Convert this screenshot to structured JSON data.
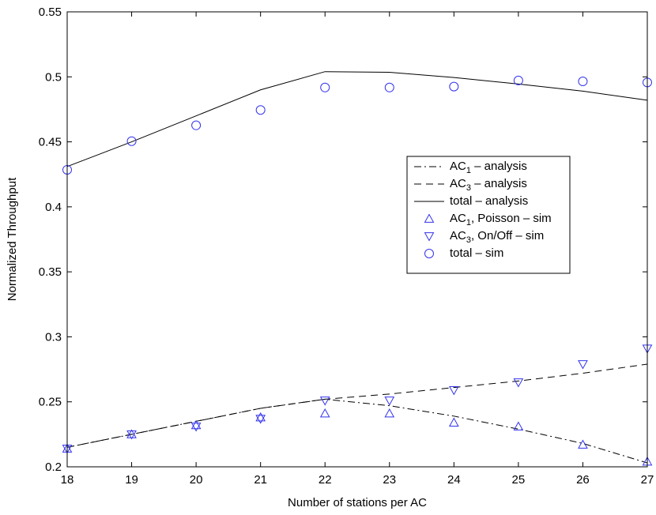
{
  "chart_data": {
    "type": "line",
    "title": "",
    "xlabel": "Number of stations per AC",
    "ylabel": "Normalized Throughput",
    "xlim": [
      18,
      27
    ],
    "ylim": [
      0.2,
      0.55
    ],
    "grid": false,
    "legend_position": "right-middle",
    "x_ticks": [
      "18",
      "19",
      "20",
      "21",
      "22",
      "23",
      "24",
      "25",
      "26",
      "27"
    ],
    "y_ticks": [
      "0.2",
      "0.25",
      "0.3",
      "0.35",
      "0.4",
      "0.45",
      "0.5",
      "0.55"
    ],
    "series": [
      {
        "name": "AC1 – analysis",
        "legend_main": "AC",
        "legend_sub": "1",
        "legend_rest": " – analysis",
        "style": "dashdot",
        "marker": "none",
        "color": "#000000",
        "x": [
          18,
          19,
          20,
          21,
          22,
          23,
          24,
          25,
          26,
          27
        ],
        "y": [
          0.215,
          0.225,
          0.235,
          0.245,
          0.252,
          0.247,
          0.239,
          0.229,
          0.218,
          0.203
        ]
      },
      {
        "name": "AC3 – analysis",
        "legend_main": "AC",
        "legend_sub": "3",
        "legend_rest": " – analysis",
        "style": "dashed",
        "marker": "none",
        "color": "#000000",
        "x": [
          18,
          19,
          20,
          21,
          22,
          23,
          24,
          25,
          26,
          27
        ],
        "y": [
          0.215,
          0.225,
          0.235,
          0.245,
          0.252,
          0.256,
          0.261,
          0.266,
          0.272,
          0.279
        ]
      },
      {
        "name": "total – analysis",
        "legend_main": "total – analysis",
        "legend_sub": "",
        "legend_rest": "",
        "style": "solid",
        "marker": "none",
        "color": "#000000",
        "x": [
          18,
          19,
          20,
          21,
          22,
          23,
          24,
          25,
          26,
          27
        ],
        "y": [
          0.431,
          0.45,
          0.47,
          0.49,
          0.504,
          0.5035,
          0.4995,
          0.4945,
          0.489,
          0.482
        ]
      },
      {
        "name": "AC1, Poisson – sim",
        "legend_main": "AC",
        "legend_sub": "1",
        "legend_rest": ", Poisson – sim",
        "style": "none",
        "marker": "triangle-up",
        "color": "#3333ee",
        "x": [
          18,
          19,
          20,
          21,
          22,
          23,
          24,
          25,
          26,
          27
        ],
        "y": [
          0.214,
          0.225,
          0.232,
          0.238,
          0.241,
          0.241,
          0.234,
          0.231,
          0.217,
          0.204
        ]
      },
      {
        "name": "AC3, On/Off – sim",
        "legend_main": "AC",
        "legend_sub": "3",
        "legend_rest": ", On/Off – sim",
        "style": "none",
        "marker": "triangle-down",
        "color": "#3333ee",
        "x": [
          18,
          19,
          20,
          21,
          22,
          23,
          24,
          25,
          26,
          27
        ],
        "y": [
          0.214,
          0.225,
          0.231,
          0.237,
          0.251,
          0.251,
          0.259,
          0.265,
          0.279,
          0.291
        ]
      },
      {
        "name": "total – sim",
        "legend_main": "total – sim",
        "legend_sub": "",
        "legend_rest": "",
        "style": "none",
        "marker": "circle",
        "color": "#3333ee",
        "x": [
          18,
          19,
          20,
          21,
          22,
          23,
          24,
          25,
          26,
          27
        ],
        "y": [
          0.4285,
          0.4505,
          0.4627,
          0.4745,
          0.4918,
          0.4918,
          0.4925,
          0.4972,
          0.4965,
          0.4957
        ]
      }
    ]
  }
}
